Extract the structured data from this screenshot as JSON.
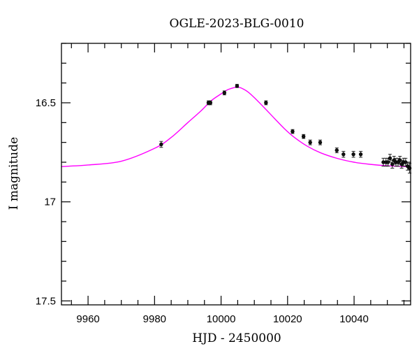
{
  "chart_data": {
    "type": "scatter",
    "title": "OGLE-2023-BLG-0010",
    "xlabel": "HJD - 2450000",
    "ylabel": "I magnitude",
    "xlim": [
      9952,
      10057
    ],
    "ylim": [
      17.52,
      16.2
    ],
    "y_inverted": true,
    "grid": false,
    "x_ticks": {
      "major": [
        9960,
        9980,
        10000,
        10020,
        10040
      ],
      "major_labels": [
        "9960",
        "9980",
        "10000",
        "10020",
        "10040"
      ],
      "minor_step": 5
    },
    "y_ticks": {
      "major": [
        16.5,
        17.0,
        17.5
      ],
      "major_labels": [
        "16.5",
        "17",
        "17.5"
      ],
      "minor_step": 0.1
    },
    "model": {
      "name": "",
      "color": "#ff00ff",
      "x": [
        9952,
        9960,
        9970,
        9980,
        9985,
        9990,
        9994,
        9997,
        10000,
        10002,
        10004,
        10005,
        10006,
        10008,
        10010,
        10013,
        10016,
        10019,
        10022,
        10026,
        10030,
        10035,
        10040,
        10045,
        10050,
        10057
      ],
      "y": [
        16.822,
        16.814,
        16.795,
        16.73,
        16.675,
        16.6,
        16.54,
        16.49,
        16.455,
        16.434,
        16.423,
        16.421,
        16.425,
        16.444,
        16.474,
        16.525,
        16.578,
        16.63,
        16.674,
        16.72,
        16.753,
        16.781,
        16.8,
        16.811,
        16.818,
        16.823
      ]
    },
    "series": [
      {
        "name": "",
        "color": "#111111",
        "x": [
          9982.0,
          9996.2,
          9996.8,
          10001.0,
          10004.8,
          10013.5,
          10021.5,
          10024.8,
          10026.8,
          10029.8,
          10034.8,
          10036.8,
          10039.8,
          10042.0,
          10048.8,
          10049.6,
          10050.2,
          10050.8,
          10051.5,
          10052.0,
          10052.6,
          10053.2,
          10053.8,
          10054.3,
          10054.9,
          10055.5,
          10056.1,
          10056.7
        ],
        "y": [
          16.71,
          16.5,
          16.5,
          16.45,
          16.415,
          16.5,
          16.645,
          16.67,
          16.7,
          16.7,
          16.74,
          16.76,
          16.76,
          16.76,
          16.8,
          16.8,
          16.8,
          16.78,
          16.81,
          16.79,
          16.8,
          16.8,
          16.79,
          16.81,
          16.8,
          16.8,
          16.82,
          16.83
        ],
        "err": [
          0.015,
          0.01,
          0.01,
          0.01,
          0.008,
          0.01,
          0.01,
          0.01,
          0.012,
          0.012,
          0.012,
          0.015,
          0.015,
          0.015,
          0.02,
          0.02,
          0.02,
          0.02,
          0.02,
          0.02,
          0.02,
          0.02,
          0.02,
          0.02,
          0.02,
          0.02,
          0.02,
          0.025
        ]
      }
    ]
  }
}
